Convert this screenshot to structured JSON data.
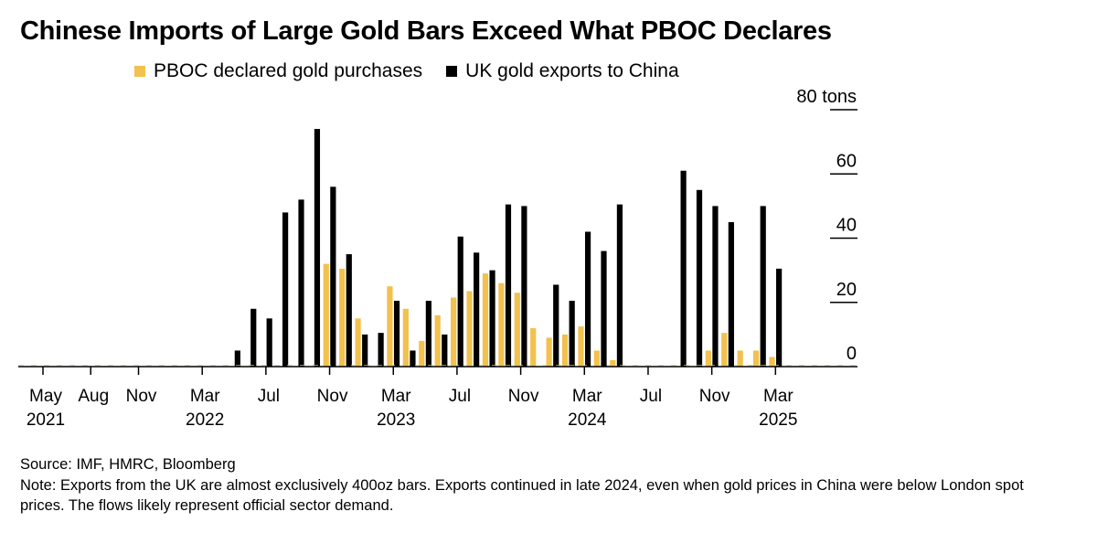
{
  "chart_data": {
    "type": "bar",
    "title": "Chinese Imports of Large Gold Bars Exceed What PBOC Declares",
    "ylabel_unit": "tons",
    "ylim": [
      0,
      80
    ],
    "yticks": [
      0,
      20,
      40,
      60,
      80
    ],
    "ytick_labels": [
      "0",
      "20",
      "40",
      "60",
      "80 tons"
    ],
    "categories": [
      "2021-05",
      "2021-06",
      "2021-07",
      "2021-08",
      "2021-09",
      "2021-10",
      "2021-11",
      "2021-12",
      "2022-01",
      "2022-02",
      "2022-03",
      "2022-04",
      "2022-05",
      "2022-06",
      "2022-07",
      "2022-08",
      "2022-09",
      "2022-10",
      "2022-11",
      "2022-12",
      "2023-01",
      "2023-02",
      "2023-03",
      "2023-04",
      "2023-05",
      "2023-06",
      "2023-07",
      "2023-08",
      "2023-09",
      "2023-10",
      "2023-11",
      "2023-12",
      "2024-01",
      "2024-02",
      "2024-03",
      "2024-04",
      "2024-05",
      "2024-06",
      "2024-07",
      "2024-08",
      "2024-09",
      "2024-10",
      "2024-11",
      "2024-12",
      "2025-01",
      "2025-02",
      "2025-03"
    ],
    "series": [
      {
        "name": "PBOC declared gold purchases",
        "color": "#f2c14e",
        "values": [
          0,
          0,
          0,
          0,
          0,
          0,
          0,
          0,
          0,
          0,
          0,
          0,
          0,
          0,
          0,
          0,
          0,
          0,
          32,
          30.5,
          15,
          0,
          25,
          18,
          8,
          16,
          21.5,
          23.5,
          29,
          26,
          23,
          12,
          9,
          10,
          12.5,
          5,
          2,
          0,
          0,
          0,
          0,
          0,
          5,
          10.5,
          5,
          5,
          3
        ]
      },
      {
        "name": "UK gold exports to China",
        "color": "#000000",
        "values": [
          0,
          0,
          0,
          0,
          0,
          0,
          0,
          0,
          0,
          0,
          0,
          0,
          5,
          18,
          15,
          48,
          52,
          74,
          56,
          35,
          10,
          10.5,
          20.5,
          5,
          20.5,
          10,
          40.5,
          35.5,
          30,
          50.5,
          50,
          0,
          25.5,
          20.5,
          42,
          36,
          50.5,
          0,
          0,
          0,
          61,
          55,
          50,
          45,
          0,
          50,
          30.5
        ]
      }
    ],
    "x_tick_labels": [
      {
        "month": "2021-05",
        "label": "May",
        "year": "2021"
      },
      {
        "month": "2021-08",
        "label": "Aug",
        "year": ""
      },
      {
        "month": "2021-11",
        "label": "Nov",
        "year": ""
      },
      {
        "month": "2022-03",
        "label": "Mar",
        "year": "2022"
      },
      {
        "month": "2022-07",
        "label": "Jul",
        "year": ""
      },
      {
        "month": "2022-11",
        "label": "Nov",
        "year": ""
      },
      {
        "month": "2023-03",
        "label": "Mar",
        "year": "2023"
      },
      {
        "month": "2023-07",
        "label": "Jul",
        "year": ""
      },
      {
        "month": "2023-11",
        "label": "Nov",
        "year": ""
      },
      {
        "month": "2024-03",
        "label": "Mar",
        "year": "2024"
      },
      {
        "month": "2024-07",
        "label": "Jul",
        "year": ""
      },
      {
        "month": "2024-11",
        "label": "Nov",
        "year": ""
      },
      {
        "month": "2025-03",
        "label": "Mar",
        "year": "2025"
      }
    ],
    "legend": "top-left"
  },
  "legend": {
    "pboc": "PBOC declared gold purchases",
    "uk": "UK gold exports to China"
  },
  "footer": {
    "source": "Source: IMF, HMRC, Bloomberg",
    "note": "Note: Exports from the UK are almost exclusively 400oz bars. Exports continued in late 2024, even when gold prices in China were below London spot prices. The flows likely represent official sector demand."
  }
}
